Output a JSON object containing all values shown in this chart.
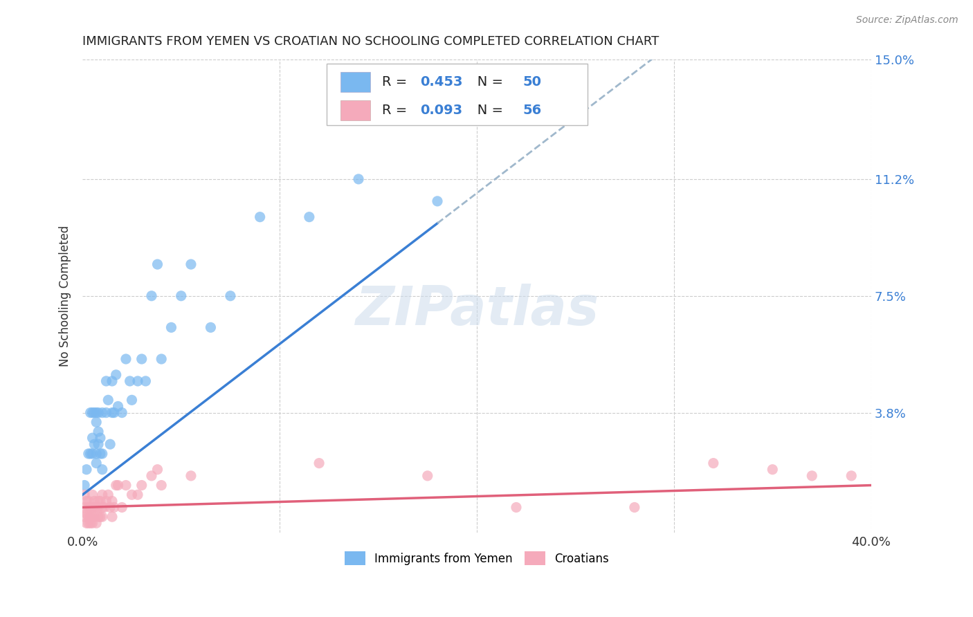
{
  "title": "IMMIGRANTS FROM YEMEN VS CROATIAN NO SCHOOLING COMPLETED CORRELATION CHART",
  "source": "Source: ZipAtlas.com",
  "ylabel": "No Schooling Completed",
  "xlim": [
    0.0,
    0.4
  ],
  "ylim": [
    0.0,
    0.15
  ],
  "ytick_labels": [
    "3.8%",
    "7.5%",
    "11.2%",
    "15.0%"
  ],
  "ytick_values": [
    0.038,
    0.075,
    0.112,
    0.15
  ],
  "color_yemen": "#7ab8f0",
  "color_croatia": "#f5aabb",
  "color_trend_yemen": "#3a7fd4",
  "color_trend_croatia": "#e0607a",
  "color_trend_dashed": "#a0b8cc",
  "legend_label_yemen": "Immigrants from Yemen",
  "legend_label_croatia": "Croatians",
  "watermark": "ZIPatlas",
  "yemen_x": [
    0.001,
    0.002,
    0.003,
    0.004,
    0.004,
    0.005,
    0.005,
    0.005,
    0.006,
    0.006,
    0.007,
    0.007,
    0.007,
    0.007,
    0.008,
    0.008,
    0.008,
    0.009,
    0.009,
    0.01,
    0.01,
    0.01,
    0.012,
    0.012,
    0.013,
    0.014,
    0.015,
    0.015,
    0.016,
    0.017,
    0.018,
    0.02,
    0.022,
    0.024,
    0.025,
    0.028,
    0.03,
    0.032,
    0.035,
    0.038,
    0.04,
    0.045,
    0.05,
    0.055,
    0.065,
    0.075,
    0.09,
    0.115,
    0.14,
    0.18
  ],
  "yemen_y": [
    0.015,
    0.02,
    0.025,
    0.038,
    0.025,
    0.03,
    0.038,
    0.025,
    0.038,
    0.028,
    0.035,
    0.025,
    0.038,
    0.022,
    0.038,
    0.028,
    0.032,
    0.025,
    0.03,
    0.038,
    0.025,
    0.02,
    0.048,
    0.038,
    0.042,
    0.028,
    0.038,
    0.048,
    0.038,
    0.05,
    0.04,
    0.038,
    0.055,
    0.048,
    0.042,
    0.048,
    0.055,
    0.048,
    0.075,
    0.085,
    0.055,
    0.065,
    0.075,
    0.085,
    0.065,
    0.075,
    0.1,
    0.1,
    0.112,
    0.105
  ],
  "croatia_x": [
    0.001,
    0.001,
    0.001,
    0.002,
    0.002,
    0.002,
    0.003,
    0.003,
    0.003,
    0.003,
    0.004,
    0.004,
    0.004,
    0.005,
    0.005,
    0.005,
    0.005,
    0.006,
    0.006,
    0.006,
    0.007,
    0.007,
    0.008,
    0.008,
    0.008,
    0.009,
    0.009,
    0.01,
    0.01,
    0.01,
    0.011,
    0.012,
    0.013,
    0.014,
    0.015,
    0.015,
    0.016,
    0.017,
    0.018,
    0.02,
    0.022,
    0.025,
    0.028,
    0.03,
    0.035,
    0.038,
    0.04,
    0.055,
    0.12,
    0.175,
    0.22,
    0.28,
    0.32,
    0.35,
    0.37,
    0.39
  ],
  "croatia_y": [
    0.005,
    0.008,
    0.012,
    0.003,
    0.006,
    0.01,
    0.003,
    0.005,
    0.008,
    0.01,
    0.003,
    0.005,
    0.008,
    0.003,
    0.005,
    0.008,
    0.012,
    0.005,
    0.008,
    0.01,
    0.003,
    0.008,
    0.005,
    0.008,
    0.01,
    0.005,
    0.01,
    0.005,
    0.008,
    0.012,
    0.008,
    0.01,
    0.012,
    0.008,
    0.005,
    0.01,
    0.008,
    0.015,
    0.015,
    0.008,
    0.015,
    0.012,
    0.012,
    0.015,
    0.018,
    0.02,
    0.015,
    0.018,
    0.022,
    0.018,
    0.008,
    0.008,
    0.022,
    0.02,
    0.018,
    0.018
  ],
  "trend_yemen_x0": 0.0,
  "trend_yemen_y0": 0.012,
  "trend_yemen_x1": 0.18,
  "trend_yemen_y1": 0.098,
  "trend_dashed_x0": 0.18,
  "trend_dashed_x1": 0.4,
  "trend_croatia_x0": 0.0,
  "trend_croatia_y0": 0.008,
  "trend_croatia_x1": 0.4,
  "trend_croatia_y1": 0.015
}
